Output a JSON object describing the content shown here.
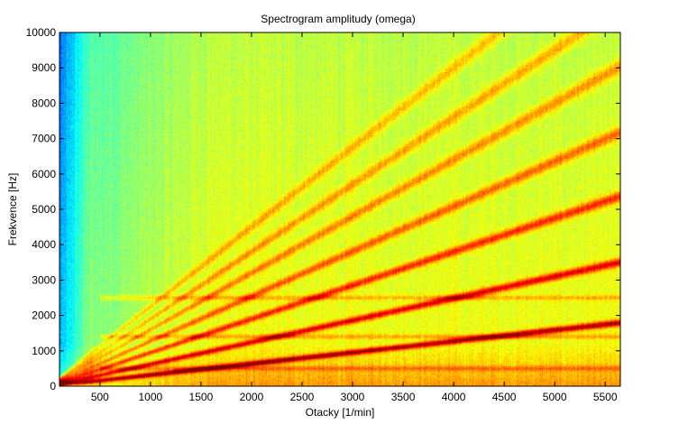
{
  "chart_data": {
    "type": "heatmap",
    "title": "Spectrogram amplitudy (omega)",
    "xlabel": "Otacky [1/min]",
    "ylabel": "Frekvence [Hz]",
    "xlim": [
      100,
      5650
    ],
    "ylim": [
      0,
      10000
    ],
    "x_ticks": [
      500,
      1000,
      1500,
      2000,
      2500,
      3000,
      3500,
      4000,
      4500,
      5000,
      5500
    ],
    "x_tick_labels": [
      "500",
      "1000",
      "1500",
      "2000",
      "2500",
      "3000",
      "3500",
      "4000",
      "4500",
      "5000",
      "5500"
    ],
    "y_ticks": [
      0,
      1000,
      2000,
      3000,
      4000,
      5000,
      6000,
      7000,
      8000,
      9000,
      10000
    ],
    "y_tick_labels": [
      "0",
      "1000",
      "2000",
      "3000",
      "4000",
      "5000",
      "6000",
      "7000",
      "8000",
      "9000",
      "10000"
    ],
    "colormap": "jet",
    "grid": false,
    "order_lines": [
      {
        "slope_hz_per_rpm": 0.317,
        "intensity": 1.0
      },
      {
        "slope_hz_per_rpm": 0.62,
        "intensity": 0.85
      },
      {
        "slope_hz_per_rpm": 0.95,
        "intensity": 0.7
      },
      {
        "slope_hz_per_rpm": 1.27,
        "intensity": 0.55
      },
      {
        "slope_hz_per_rpm": 1.6,
        "intensity": 0.45
      },
      {
        "slope_hz_per_rpm": 1.9,
        "intensity": 0.4
      },
      {
        "slope_hz_per_rpm": 2.25,
        "intensity": 0.35
      }
    ],
    "constant_bands_hz": [
      500,
      1400,
      2500
    ]
  }
}
